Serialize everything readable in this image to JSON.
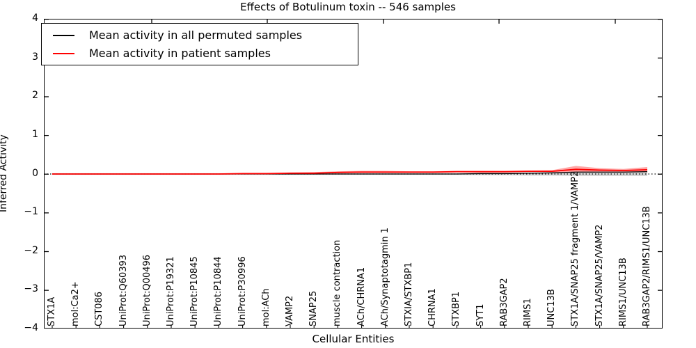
{
  "title": "Effects of Botulinum toxin -- 546 samples",
  "legend": {
    "items": [
      {
        "label": "Mean activity in all permuted samples",
        "color": "#000000"
      },
      {
        "label": "Mean activity in patient samples",
        "color": "#ff0000"
      }
    ]
  },
  "axes": {
    "ylabel": "Inferred Activity",
    "xlabel": "Cellular Entities",
    "ytick_labels": [
      "4",
      "3",
      "2",
      "1",
      "0",
      "−1",
      "−2",
      "−3",
      "−4"
    ]
  },
  "colors": {
    "permuted_line": "#000000",
    "patient_line": "#ff0000",
    "patient_band": "#ff0000",
    "permuted_band": "#888888",
    "zero_line": "#000000"
  },
  "chart_data": {
    "type": "line",
    "title": "Effects of Botulinum toxin -- 546 samples",
    "xlabel": "Cellular Entities",
    "ylabel": "Inferred Activity",
    "ylim": [
      -4,
      4
    ],
    "yticks": [
      4,
      3,
      2,
      1,
      0,
      -1,
      -2,
      -3,
      -4
    ],
    "grid": false,
    "legend_position": "upper left",
    "zero_line_style": "dotted",
    "categories": [
      "STX1A",
      "mol:Ca2+",
      "CST086",
      "UniProt:Q60393",
      "UniProt:Q00496",
      "UniProt:P19321",
      "UniProt:P10845",
      "UniProt:P10844",
      "UniProt:P30996",
      "mol:ACh",
      "VAMP2",
      "SNAP25",
      "muscle contraction",
      "ACh/CHRNA1",
      "ACh/Synaptotagmin 1",
      "STXIA/STXBP1",
      "CHRNA1",
      "STXBP1",
      "SYT1",
      "RAB3GAP2",
      "RIMS1",
      "UNC13B",
      "STX1A/SNAP25 fragment 1/VAMP2",
      "STX1A/SNAP25/VAMP2",
      "RIMS1/UNC13B",
      "RAB3GAP2/RIMS1/UNC13B"
    ],
    "series": [
      {
        "name": "Mean activity in all permuted samples",
        "values": [
          0,
          0,
          0,
          0,
          0,
          0,
          0,
          0,
          0,
          0,
          0,
          0,
          0,
          0,
          0,
          0,
          0,
          0,
          0.01,
          0.01,
          0.02,
          0.03,
          0.05,
          0.05,
          0.05,
          0.06
        ],
        "band_upper": [
          0.02,
          0.02,
          0.02,
          0.02,
          0.02,
          0.02,
          0.02,
          0.02,
          0.02,
          0.02,
          0.02,
          0.02,
          0.02,
          0.02,
          0.02,
          0.02,
          0.02,
          0.02,
          0.03,
          0.03,
          0.03,
          0.04,
          0.06,
          0.06,
          0.06,
          0.07
        ],
        "band_lower": [
          -0.02,
          -0.02,
          -0.02,
          -0.02,
          -0.02,
          -0.02,
          -0.02,
          -0.02,
          -0.02,
          -0.02,
          -0.02,
          -0.02,
          -0.02,
          -0.02,
          -0.02,
          -0.02,
          -0.02,
          -0.02,
          -0.03,
          -0.03,
          -0.04,
          -0.04,
          -0.05,
          -0.05,
          -0.05,
          -0.05
        ]
      },
      {
        "name": "Mean activity in patient samples",
        "values": [
          0,
          0,
          0,
          0,
          0,
          0,
          0,
          0,
          0.01,
          0.01,
          0.02,
          0.02,
          0.04,
          0.05,
          0.05,
          0.05,
          0.05,
          0.06,
          0.06,
          0.06,
          0.07,
          0.07,
          0.12,
          0.1,
          0.09,
          0.11
        ],
        "band_upper": [
          0.01,
          0.01,
          0.01,
          0.01,
          0.01,
          0.01,
          0.01,
          0.01,
          0.02,
          0.02,
          0.04,
          0.05,
          0.07,
          0.08,
          0.08,
          0.07,
          0.07,
          0.08,
          0.08,
          0.08,
          0.09,
          0.1,
          0.21,
          0.15,
          0.13,
          0.18
        ],
        "band_lower": [
          -0.01,
          -0.01,
          -0.01,
          -0.01,
          -0.01,
          -0.01,
          -0.01,
          -0.01,
          0,
          0,
          0.01,
          0.01,
          0.02,
          0.03,
          0.03,
          0.03,
          0.03,
          0.04,
          0.04,
          0.04,
          0.05,
          0.05,
          0.04,
          0.06,
          0.05,
          0.05
        ]
      }
    ]
  }
}
